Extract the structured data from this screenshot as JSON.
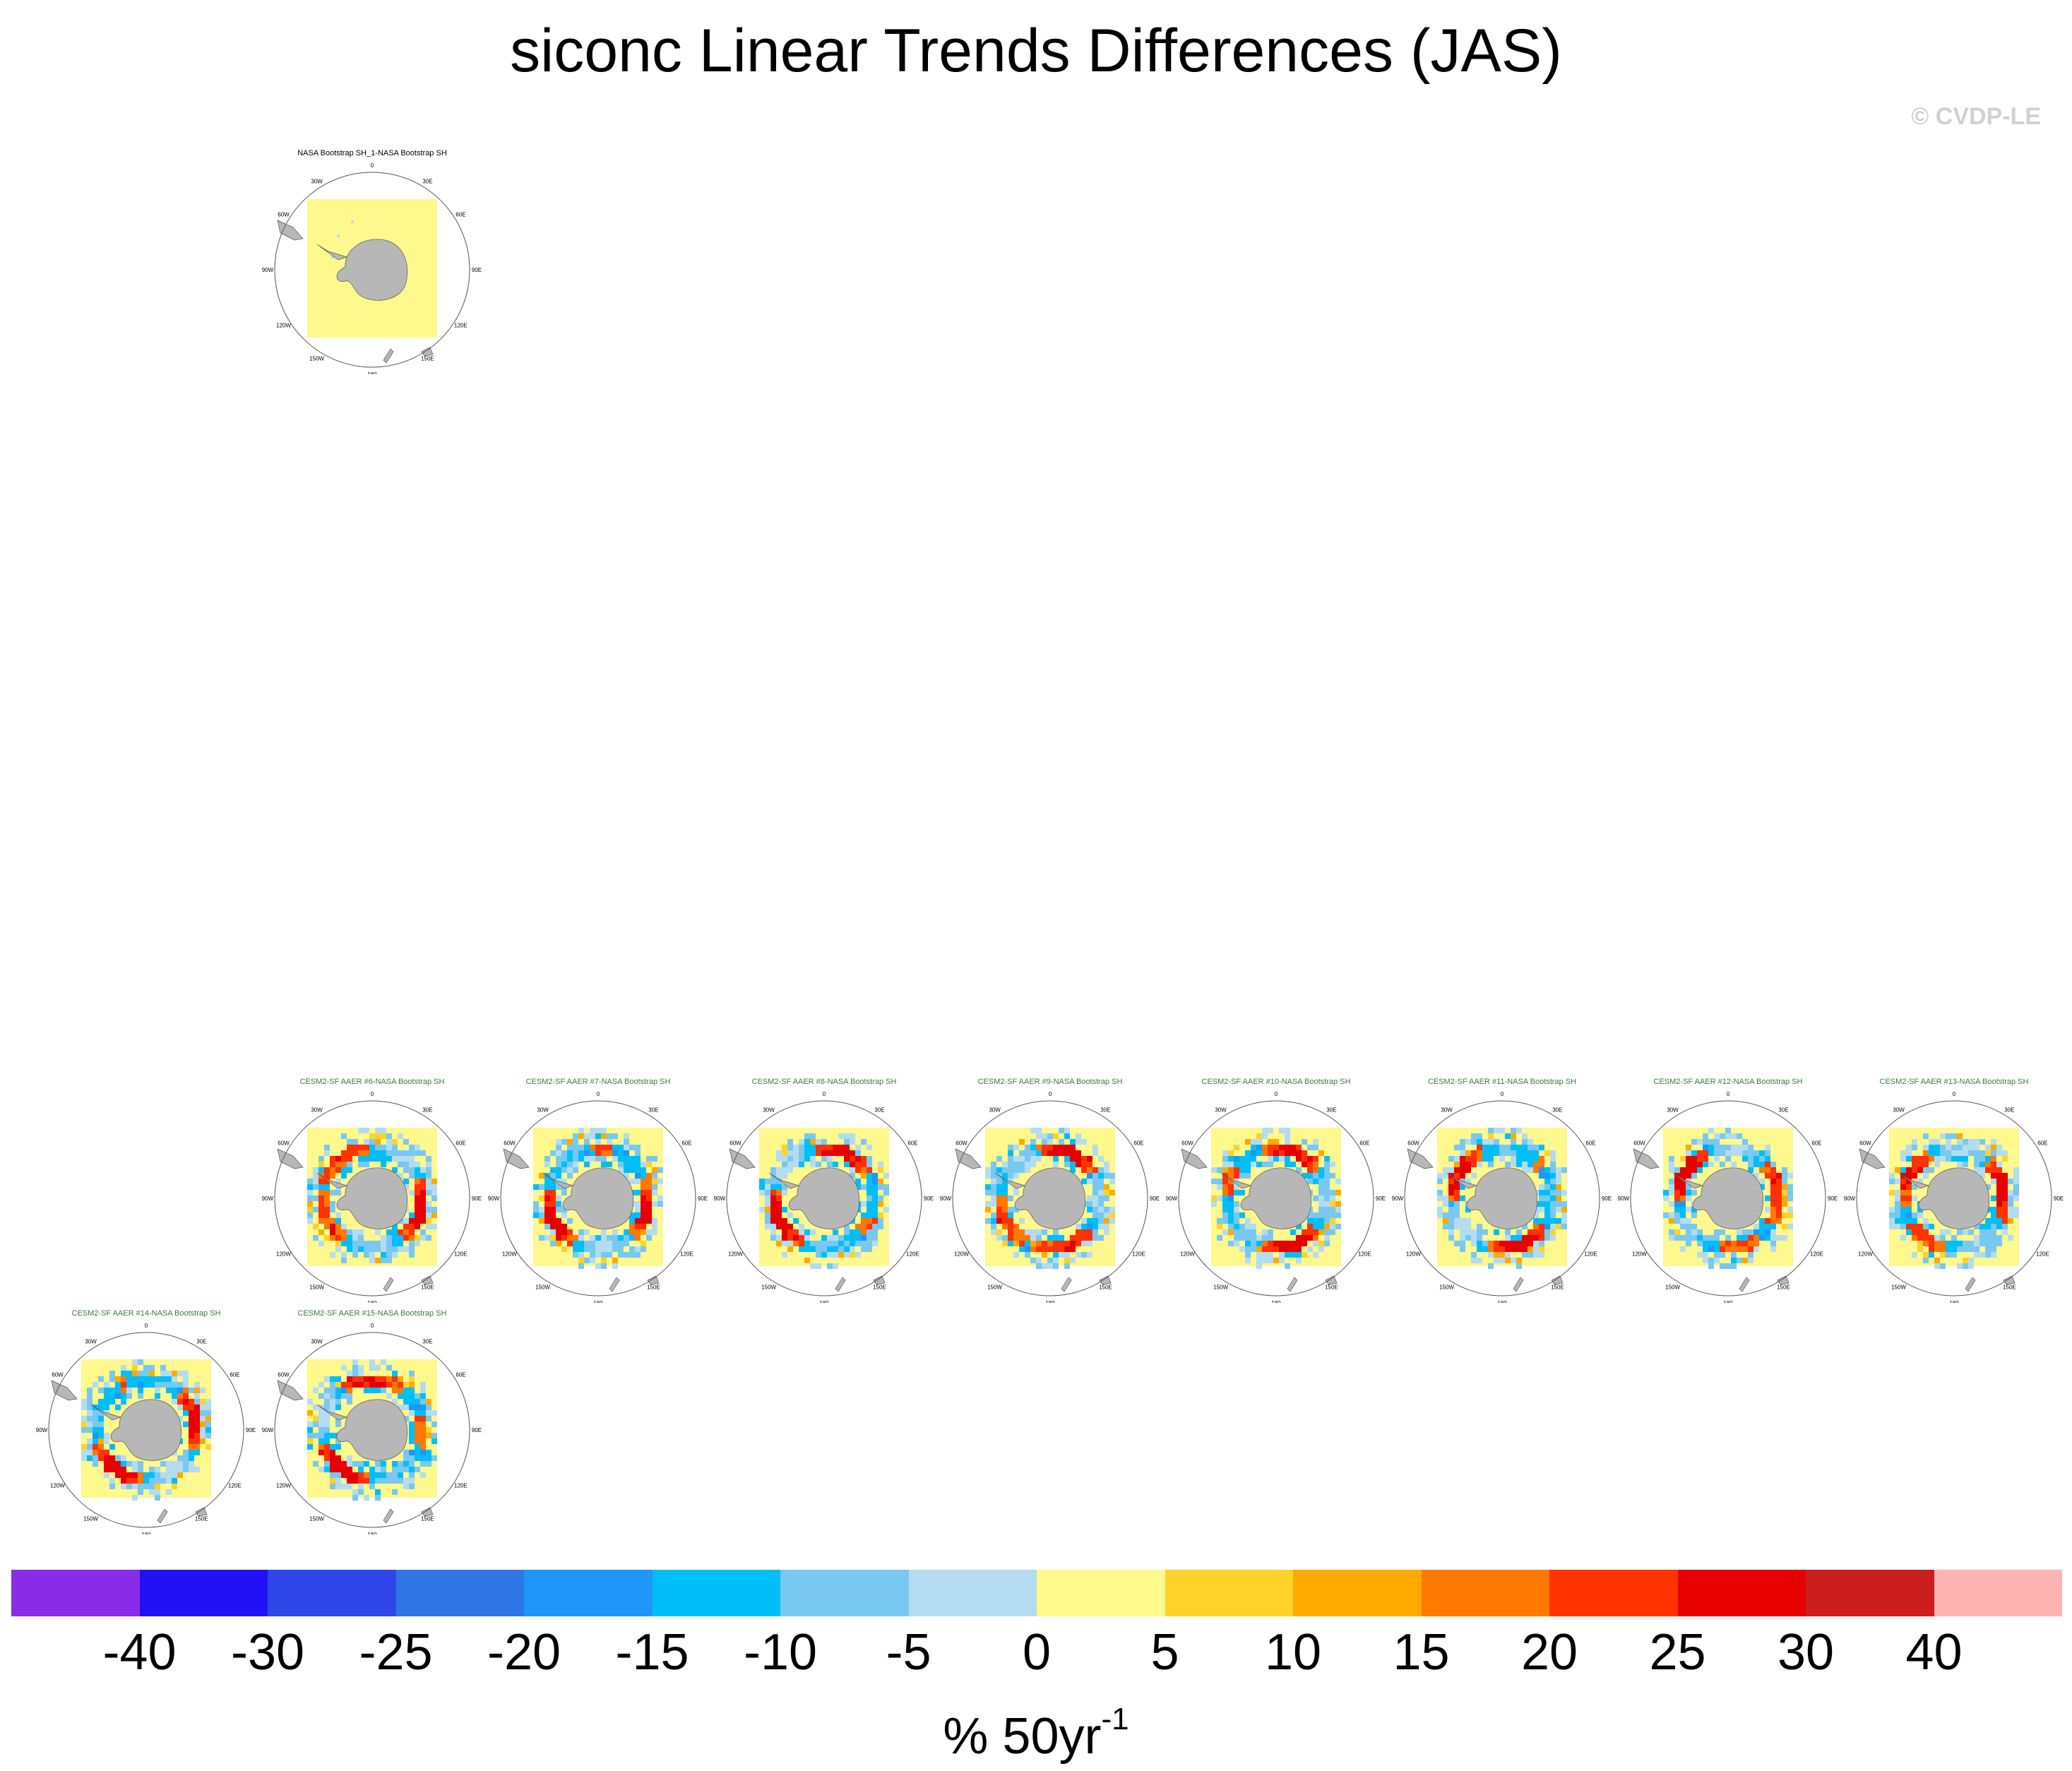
{
  "title": "siconc Linear Trends Differences (JAS)",
  "watermark": "© CVDP-LE",
  "lon_labels": {
    "n": "0",
    "nne": "30E",
    "ne": "60E",
    "e": "90E",
    "se": "120E",
    "sse": "150E",
    "s": "180",
    "ssw": "150W",
    "sw": "120W",
    "w": "90W",
    "nw": "60W",
    "nnw": "30W"
  },
  "panels": [
    {
      "title": "NASA Bootstrap SH_1-NASA Bootstrap SH",
      "kind": "obs"
    },
    {
      "title": "CESM2-SF AAER #6-NASA Bootstrap SH",
      "kind": "model"
    },
    {
      "title": "CESM2-SF AAER #7-NASA Bootstrap SH",
      "kind": "model"
    },
    {
      "title": "CESM2-SF AAER #8-NASA Bootstrap SH",
      "kind": "model"
    },
    {
      "title": "CESM2-SF AAER #9-NASA Bootstrap SH",
      "kind": "model"
    },
    {
      "title": "CESM2-SF AAER #10-NASA Bootstrap SH",
      "kind": "model"
    },
    {
      "title": "CESM2-SF AAER #11-NASA Bootstrap SH",
      "kind": "model"
    },
    {
      "title": "CESM2-SF AAER #12-NASA Bootstrap SH",
      "kind": "model"
    },
    {
      "title": "CESM2-SF AAER #13-NASA Bootstrap SH",
      "kind": "model"
    },
    {
      "title": "CESM2-SF AAER #14-NASA Bootstrap SH",
      "kind": "model"
    },
    {
      "title": "CESM2-SF AAER #15-NASA Bootstrap SH",
      "kind": "model"
    }
  ],
  "colorbar": {
    "colors": [
      "#8a2be8",
      "#2311f5",
      "#2f47e8",
      "#3075e6",
      "#1e96fa",
      "#00bef8",
      "#78c8f2",
      "#b4dcf0",
      "#fff88c",
      "#ffd22a",
      "#ffaa00",
      "#ff7800",
      "#ff3200",
      "#e60000",
      "#cd1e1e",
      "#ffb4b4"
    ],
    "ticks": [
      "-40",
      "-30",
      "-25",
      "-20",
      "-15",
      "-10",
      "-5",
      "0",
      "5",
      "10",
      "15",
      "20",
      "25",
      "30",
      "40"
    ],
    "units_main": "% 50yr",
    "units_exp": "-1"
  },
  "colors": {
    "land": "#b7b7b7",
    "background_field": "#fff88c",
    "model_title": "#3c7a3c"
  }
}
